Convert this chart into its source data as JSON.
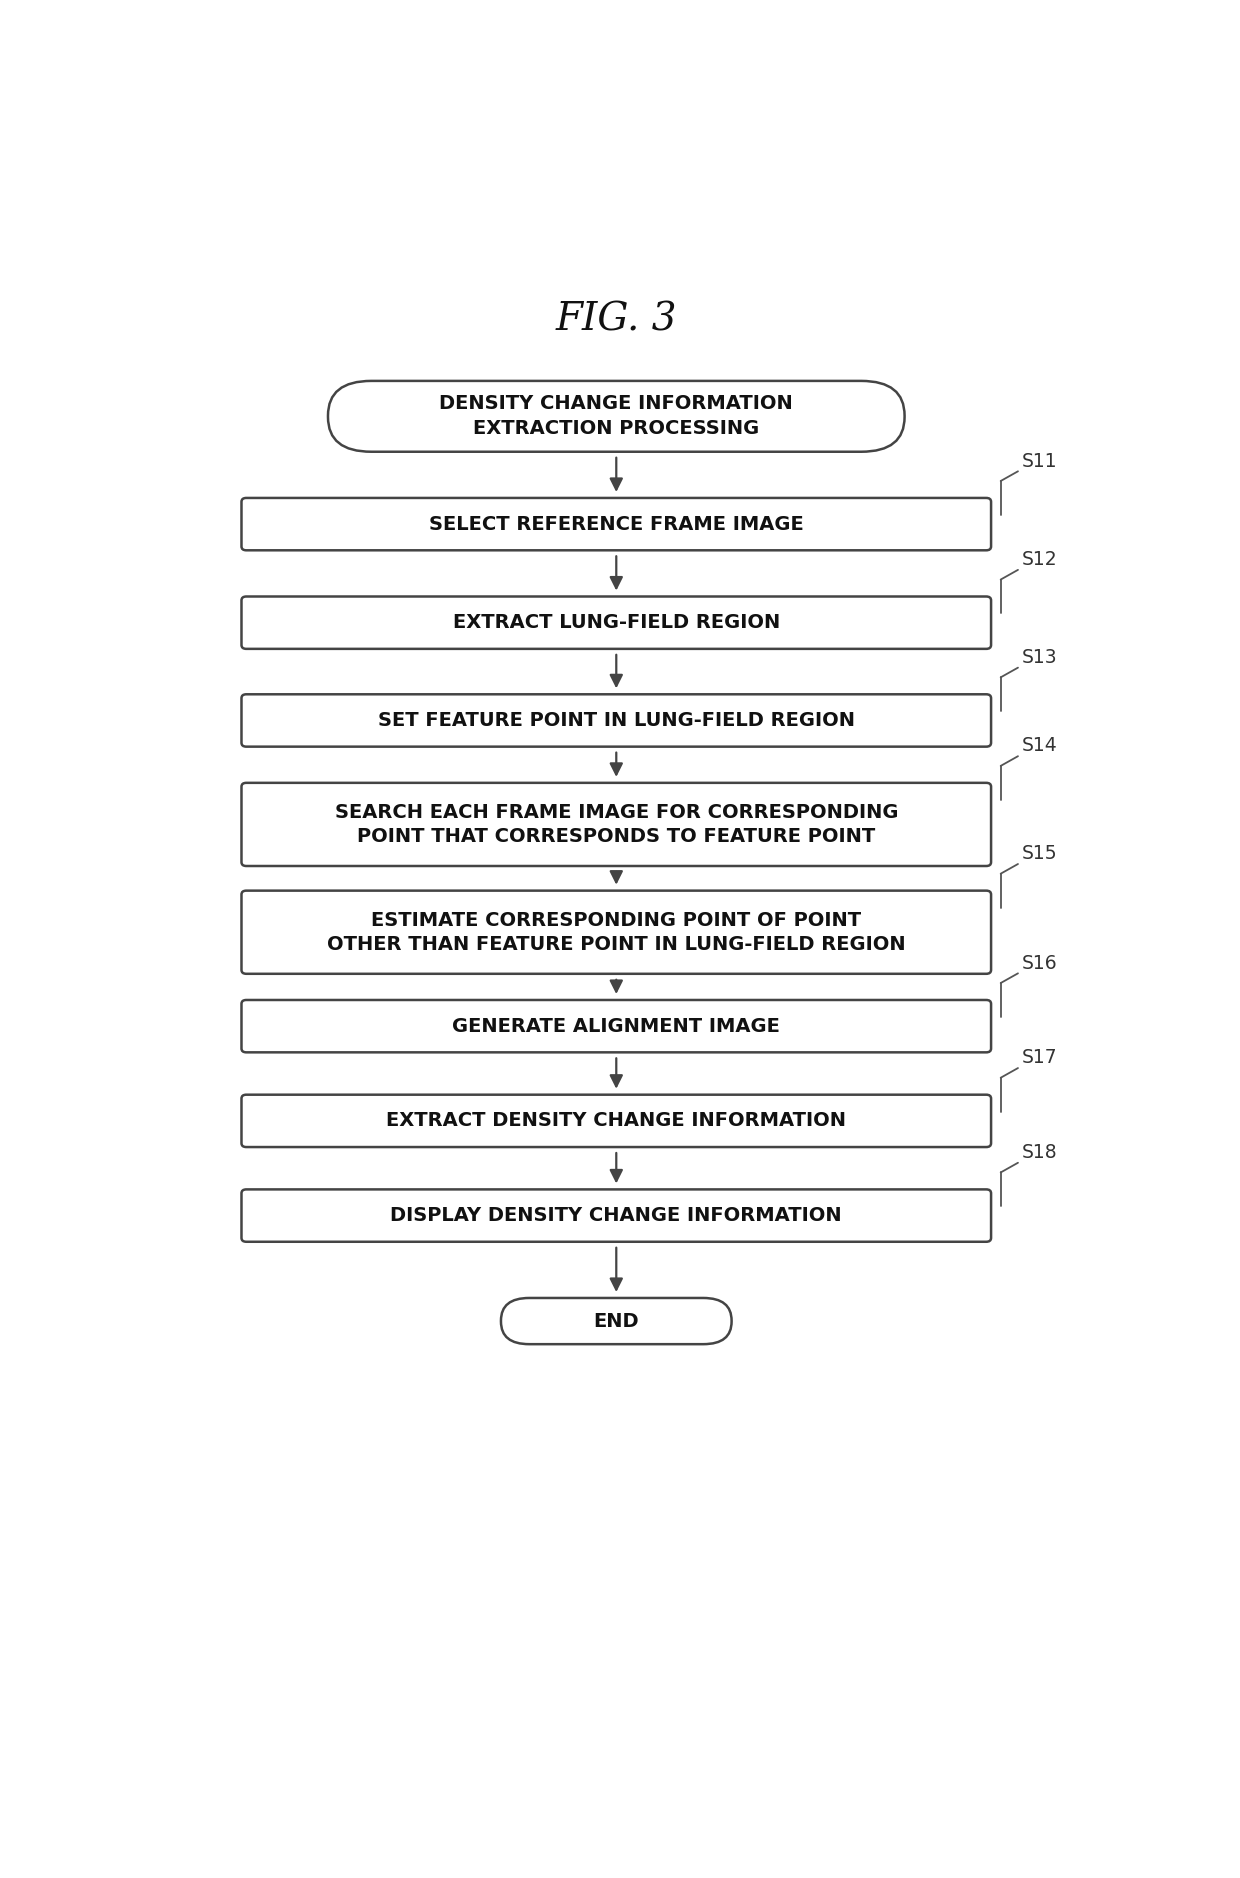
{
  "title": "FIG. 3",
  "background_color": "#ffffff",
  "fig_width": 12.4,
  "fig_height": 18.78,
  "start_label": "DENSITY CHANGE INFORMATION\nEXTRACTION PROCESSING",
  "end_label": "END",
  "steps": [
    {
      "label": "SELECT REFERENCE FRAME IMAGE",
      "step_id": "S11",
      "two_line": false
    },
    {
      "label": "EXTRACT LUNG-FIELD REGION",
      "step_id": "S12",
      "two_line": false
    },
    {
      "label": "SET FEATURE POINT IN LUNG-FIELD REGION",
      "step_id": "S13",
      "two_line": false
    },
    {
      "label": "SEARCH EACH FRAME IMAGE FOR CORRESPONDING\nPOINT THAT CORRESPONDS TO FEATURE POINT",
      "step_id": "S14",
      "two_line": true
    },
    {
      "label": "ESTIMATE CORRESPONDING POINT OF POINT\nOTHER THAN FEATURE POINT IN LUNG-FIELD REGION",
      "step_id": "S15",
      "two_line": true
    },
    {
      "label": "GENERATE ALIGNMENT IMAGE",
      "step_id": "S16",
      "two_line": false
    },
    {
      "label": "EXTRACT DENSITY CHANGE INFORMATION",
      "step_id": "S17",
      "two_line": false
    },
    {
      "label": "DISPLAY DENSITY CHANGE INFORMATION",
      "step_id": "S18",
      "two_line": false
    }
  ],
  "box_color": "#ffffff",
  "box_edge_color": "#444444",
  "text_color": "#111111",
  "arrow_color": "#444444",
  "step_label_color": "#333333",
  "font_size_title": 28,
  "font_size_box": 14,
  "font_size_step": 13.5
}
